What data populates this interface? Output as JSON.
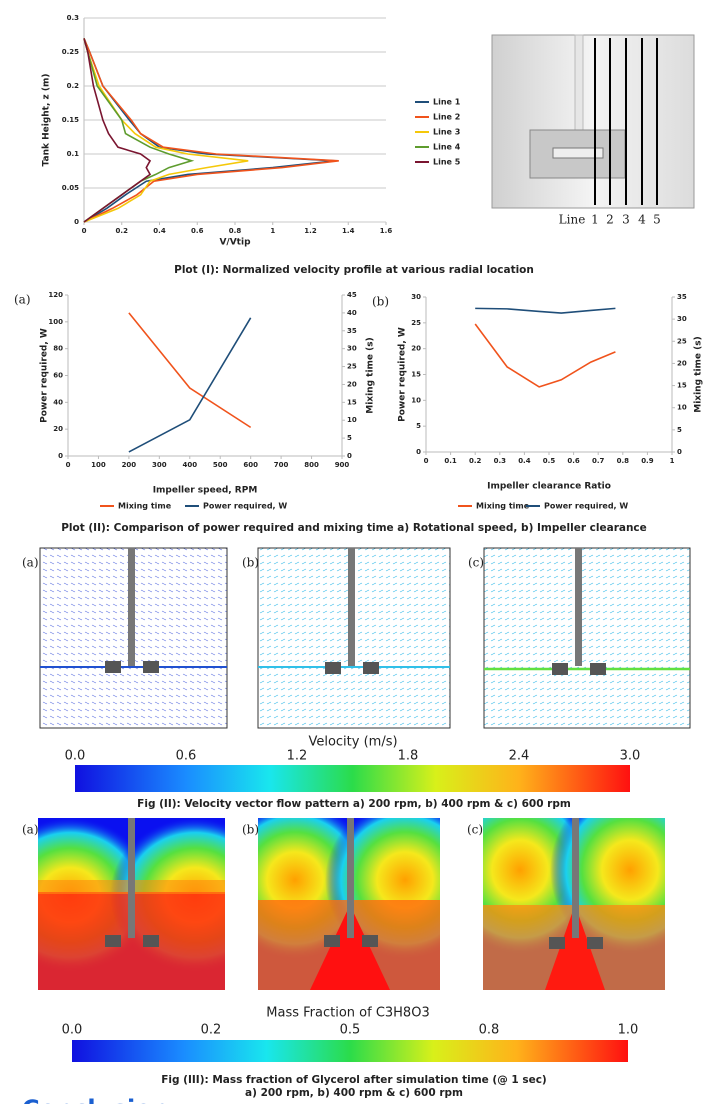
{
  "chart_data": [
    {
      "type": "line",
      "x_label": "V/Vtip",
      "y_label": "Tank Height, z (m)",
      "xlim": [
        0,
        1.6
      ],
      "xticks": [
        0,
        0.2,
        0.4,
        0.6,
        0.8,
        1,
        1.2,
        1.4,
        1.6
      ],
      "ylim": [
        0,
        0.3
      ],
      "yticks": [
        0,
        0.05,
        0.1,
        0.15,
        0.2,
        0.25,
        0.3
      ],
      "grid": true,
      "legend": "right",
      "series": [
        {
          "name": "Line 1",
          "color": "#1f4e79",
          "x": [
            0,
            0.12,
            0.22,
            0.33,
            0.55,
            1.0,
            1.33,
            0.65,
            0.4,
            0.3,
            0.24,
            0.1,
            0.03,
            0
          ],
          "values": [
            0,
            0.02,
            0.04,
            0.06,
            0.07,
            0.08,
            0.09,
            0.1,
            0.11,
            0.13,
            0.15,
            0.2,
            0.25,
            0.27
          ]
        },
        {
          "name": "Line 2",
          "color": "#f0531c",
          "x": [
            0,
            0.15,
            0.28,
            0.37,
            0.6,
            1.05,
            1.35,
            0.7,
            0.42,
            0.3,
            0.25,
            0.1,
            0.03,
            0
          ],
          "values": [
            0,
            0.02,
            0.04,
            0.06,
            0.07,
            0.08,
            0.09,
            0.1,
            0.11,
            0.13,
            0.15,
            0.2,
            0.25,
            0.27
          ]
        },
        {
          "name": "Line 3",
          "color": "#f5c80a",
          "x": [
            0,
            0.18,
            0.3,
            0.35,
            0.45,
            0.65,
            0.87,
            0.55,
            0.38,
            0.27,
            0.2,
            0.08,
            0.02,
            0
          ],
          "values": [
            0,
            0.02,
            0.04,
            0.06,
            0.07,
            0.08,
            0.09,
            0.1,
            0.11,
            0.13,
            0.15,
            0.2,
            0.25,
            0.27
          ]
        },
        {
          "name": "Line 4",
          "color": "#5e9c2e",
          "x": [
            0,
            0.1,
            0.2,
            0.3,
            0.38,
            0.45,
            0.57,
            0.45,
            0.35,
            0.22,
            0.2,
            0.07,
            0.02,
            0
          ],
          "values": [
            0,
            0.02,
            0.04,
            0.06,
            0.07,
            0.08,
            0.09,
            0.1,
            0.11,
            0.13,
            0.15,
            0.2,
            0.25,
            0.27
          ]
        },
        {
          "name": "Line 5",
          "color": "#7a1530",
          "x": [
            0,
            0.1,
            0.2,
            0.3,
            0.35,
            0.33,
            0.35,
            0.3,
            0.18,
            0.13,
            0.1,
            0.05,
            0.02,
            0
          ],
          "values": [
            0,
            0.02,
            0.04,
            0.06,
            0.07,
            0.08,
            0.09,
            0.1,
            0.11,
            0.13,
            0.15,
            0.2,
            0.25,
            0.27
          ]
        }
      ]
    },
    {
      "type": "line",
      "panel_label": "(a)",
      "x_label": "Impeller speed, RPM",
      "y_label": "Power required, W",
      "y2_label": "Mixing time (s)",
      "xlim": [
        0,
        900
      ],
      "xticks": [
        0,
        100,
        200,
        300,
        400,
        500,
        600,
        700,
        800,
        900
      ],
      "ylim": [
        0,
        120
      ],
      "yticks": [
        0,
        20,
        40,
        60,
        80,
        100,
        120
      ],
      "y2lim": [
        0,
        45
      ],
      "y2ticks": [
        0,
        5,
        10,
        15,
        20,
        25,
        30,
        35,
        40,
        45
      ],
      "grid": false,
      "legend": "bottom",
      "x": [
        200,
        400,
        600
      ],
      "series": [
        {
          "name": "Mixing time",
          "color": "#f0531c",
          "axis": "y2",
          "values": [
            40,
            19,
            8
          ]
        },
        {
          "name": "Power required, W",
          "color": "#1f4e79",
          "values": [
            3,
            27,
            103
          ]
        }
      ]
    },
    {
      "type": "line",
      "panel_label": "(b)",
      "x_label": "Impeller clearance Ratio",
      "y_label": "Power required, W",
      "y2_label": "Mixing time (s)",
      "xlim": [
        0,
        1
      ],
      "xticks": [
        0,
        0.1,
        0.2,
        0.3,
        0.4,
        0.5,
        0.6,
        0.7,
        0.8,
        0.9,
        1
      ],
      "ylim": [
        0,
        30
      ],
      "yticks": [
        0,
        5,
        10,
        15,
        20,
        25,
        30
      ],
      "y2lim": [
        0,
        35
      ],
      "y2ticks": [
        0,
        5,
        10,
        15,
        20,
        25,
        30,
        35
      ],
      "grid": false,
      "legend": "bottom",
      "x": [
        0.2,
        0.33,
        0.46,
        0.55,
        0.67,
        0.77
      ],
      "series": [
        {
          "name": "Mixing time",
          "color": "#f0531c",
          "axis": "y2",
          "values": [
            28.9,
            19.2,
            14.7,
            16.3,
            20.3,
            22.6
          ]
        },
        {
          "name": "Power required, W",
          "color": "#1f4e79",
          "values": [
            27.8,
            27.7,
            27.2,
            26.9,
            27.4,
            27.8
          ]
        }
      ]
    }
  ],
  "schematic": {
    "label": "Line",
    "numbers": [
      "1",
      "2",
      "3",
      "4",
      "5"
    ]
  },
  "captions": {
    "plot1": "Plot (I): Normalized velocity profile at various radial location",
    "plot2": "Plot (II): Comparison of power required and mixing time a) Rotational speed, b) Impeller clearance",
    "fig2": "Fig (II): Velocity vector flow pattern a) 200 rpm, b) 400 rpm & c) 600 rpm",
    "fig3": [
      "Fig (III): Mass fraction of Glycerol after simulation time (@ 1 sec)",
      "a) 200 rpm, b) 400 rpm & c) 600 rpm"
    ]
  },
  "fig2": {
    "panels": [
      "(a)",
      "(b)",
      "(c)"
    ],
    "colorbar_title": "Velocity (m/s)",
    "colorbar_labels": [
      "0.0",
      "0.6",
      "1.2",
      "1.8",
      "2.4",
      "3.0"
    ]
  },
  "fig3": {
    "panels": [
      "(a)",
      "(b)",
      "(c)"
    ],
    "colorbar_title": "Mass Fraction of C3H8O3",
    "colorbar_labels": [
      "0.0",
      "0.2",
      "0.5",
      "0.8",
      "1.0"
    ]
  },
  "section_heading": "Conclusion"
}
